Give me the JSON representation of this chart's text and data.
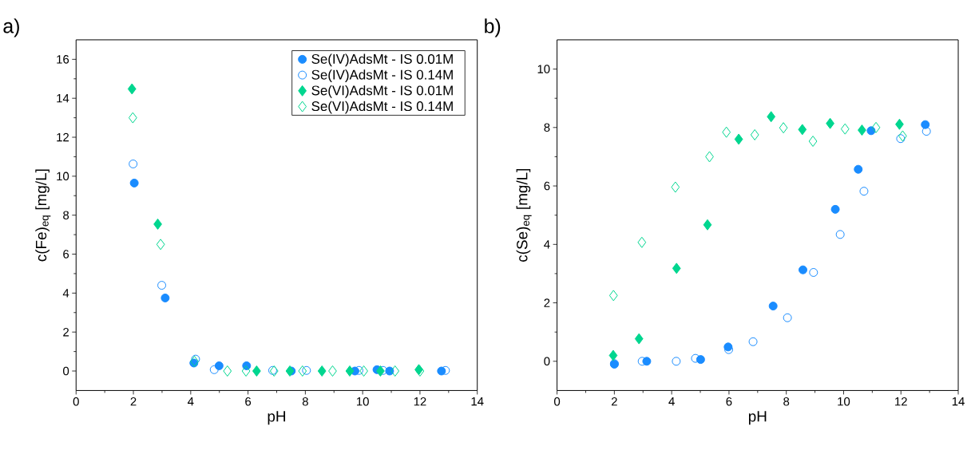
{
  "chart_data": [
    {
      "type": "scatter",
      "annotations": [
        "a)"
      ],
      "xlabel": "pH",
      "ylabel": "c(Fe)$_{eq}$ [mg/L]",
      "xlim": [
        0,
        14
      ],
      "ylim": [
        -1,
        17
      ],
      "xticks": [
        0,
        2,
        4,
        6,
        8,
        10,
        12,
        14
      ],
      "yticks": [
        0,
        2,
        4,
        6,
        8,
        10,
        12,
        14,
        16
      ],
      "legend": "top right",
      "grid": false,
      "series": [
        {
          "name": "Se(IV)AdsMt - IS 0.01M",
          "color": "#1a8cff",
          "marker": "circle",
          "x": [
            2.03,
            3.11,
            4.11,
            4.99,
            5.95,
            7.51,
            9.73,
            10.5,
            10.94,
            12.75
          ],
          "values": [
            9.65,
            3.75,
            0.41,
            0.27,
            0.27,
            0.0,
            0.0,
            0.07,
            0.0,
            0.0
          ]
        },
        {
          "name": "Se(IV)AdsMt - IS 0.14M",
          "color": "#1a8cff",
          "marker": "circle",
          "x": [
            1.99,
            2.99,
            4.17,
            4.82,
            6.86,
            8.04,
            9.87,
            10.71,
            12.89
          ],
          "values": [
            10.63,
            4.4,
            0.61,
            0.07,
            0.03,
            0.03,
            0.03,
            0.03,
            0.03
          ]
        },
        {
          "name": "Se(VI)AdsMt - IS 0.01M",
          "color": "#00d68f",
          "marker": "diamond",
          "x": [
            1.95,
            2.85,
            6.3,
            7.46,
            8.58,
            9.55,
            10.62,
            11.96
          ],
          "values": [
            14.48,
            7.54,
            0.0,
            0.0,
            0.0,
            0.0,
            0.0,
            0.07
          ]
        },
        {
          "name": "Se(VI)AdsMt - IS 0.14M",
          "color": "#00d68f",
          "marker": "diamond",
          "x": [
            1.98,
            2.95,
            4.13,
            5.28,
            5.93,
            6.91,
            7.9,
            8.95,
            10.04,
            11.13,
            12.0
          ],
          "values": [
            13.0,
            6.5,
            0.5,
            0.0,
            0.0,
            0.0,
            0.0,
            0.0,
            0.0,
            0.0,
            0.0
          ]
        }
      ]
    },
    {
      "type": "scatter",
      "annotations": [
        "b)"
      ],
      "xlabel": "pH",
      "ylabel": "c(Se)$_{eq}$ [mg/L]",
      "xlim": [
        0,
        14
      ],
      "ylim": [
        -1,
        11
      ],
      "xticks": [
        0,
        2,
        4,
        6,
        8,
        10,
        12,
        14
      ],
      "yticks": [
        0,
        2,
        4,
        6,
        8,
        10
      ],
      "grid": false,
      "series": [
        {
          "color": "#1a8cff",
          "marker": "circle",
          "x": [
            2.0,
            3.13,
            5.01,
            5.97,
            7.54,
            8.58,
            9.71,
            10.51,
            10.96,
            12.85
          ],
          "values": [
            -0.1,
            0.0,
            0.06,
            0.49,
            1.89,
            3.13,
            5.2,
            6.57,
            7.89,
            8.1
          ]
        },
        {
          "color": "#1a8cff",
          "marker": "circle",
          "x": [
            2.0,
            2.97,
            4.16,
            4.83,
            5.99,
            6.84,
            8.04,
            8.95,
            9.88,
            10.71,
            11.99,
            12.89
          ],
          "values": [
            -0.08,
            0.0,
            0.0,
            0.1,
            0.4,
            0.67,
            1.49,
            3.04,
            4.34,
            5.82,
            7.62,
            7.87
          ]
        },
        {
          "color": "#00d68f",
          "marker": "diamond",
          "x": [
            1.96,
            2.86,
            4.17,
            5.25,
            6.34,
            7.47,
            8.56,
            9.53,
            10.64,
            11.95
          ],
          "values": [
            0.2,
            0.77,
            3.18,
            4.67,
            7.6,
            8.37,
            7.93,
            8.14,
            7.91,
            8.11
          ]
        },
        {
          "color": "#00d68f",
          "marker": "diamond",
          "x": [
            1.97,
            2.96,
            4.13,
            5.32,
            5.91,
            6.9,
            7.9,
            8.93,
            10.05,
            11.13,
            12.06
          ],
          "values": [
            2.25,
            4.07,
            5.96,
            7.0,
            7.84,
            7.75,
            7.99,
            7.53,
            7.95,
            8.0,
            7.71
          ]
        }
      ]
    }
  ]
}
